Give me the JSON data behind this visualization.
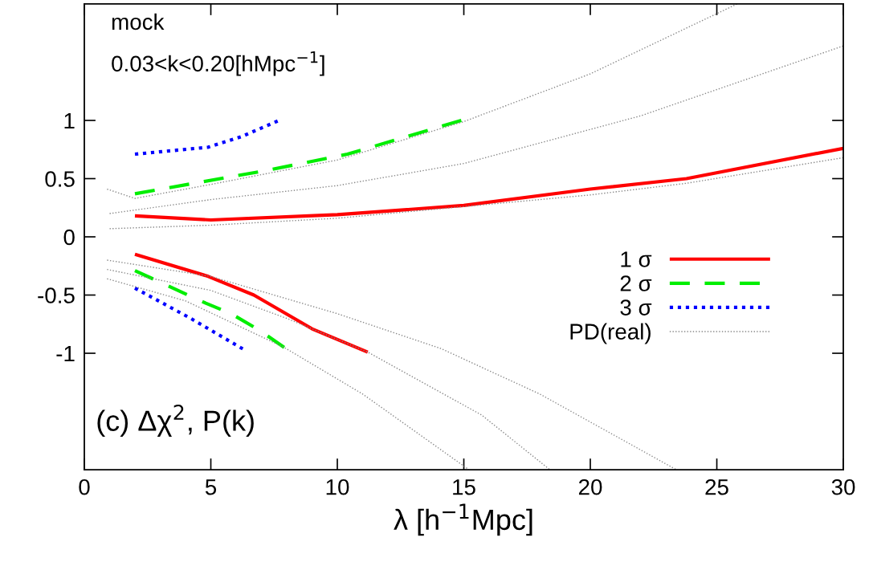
{
  "chart_data": {
    "type": "line",
    "xlabel": "λ [h$^{−1}$Mpc]",
    "annotations": [
      "mock",
      "0.03<k<0.20[hMpc$^{−1}$]",
      "(c) Δχ$^{2}$, P(k)"
    ],
    "xlim": [
      0,
      30
    ],
    "xticks": [
      0,
      5,
      10,
      15,
      20,
      25,
      30
    ],
    "ylim": [
      -2,
      2
    ],
    "yticks": [
      -1,
      -0.5,
      0,
      0.5,
      1
    ],
    "grid": false,
    "legend": "right",
    "marker": "none",
    "series": [
      {
        "name": "1 σ",
        "color": "#ff0000",
        "line_style": "solid",
        "x": [
          2,
          5,
          10,
          15,
          20,
          23.8,
          30
        ],
        "values": [
          0.18,
          0.145,
          0.19,
          0.27,
          0.41,
          0.5,
          0.76
        ]
      },
      {
        "name": "2 σ",
        "color": "#00ee00",
        "line_style": "dashed",
        "x": [
          2,
          7.2,
          10.4,
          14.9
        ],
        "values": [
          0.37,
          0.57,
          0.71,
          1.0
        ]
      },
      {
        "name": "3 σ",
        "color": "#0000ff",
        "line_style": "dotted",
        "x": [
          2,
          4.9,
          6.2,
          7.7
        ],
        "values": [
          0.71,
          0.77,
          0.86,
          1.0
        ]
      },
      {
        "name": "PD(real)",
        "color": "#888888",
        "line_style": "dotted",
        "x": [
          0.9,
          2,
          5,
          10,
          15,
          20,
          25.8
        ],
        "values": [
          0.41,
          0.33,
          0.45,
          0.66,
          0.99,
          1.4,
          2.0
        ]
      },
      {
        "color": "#ff0000",
        "line_style": "solid",
        "x": [
          2,
          4.9,
          6.7,
          9,
          11.2
        ],
        "values": [
          -0.15,
          -0.34,
          -0.5,
          -0.79,
          -0.99
        ]
      },
      {
        "color": "#00ee00",
        "line_style": "dashed",
        "x": [
          2,
          4.8,
          5.8,
          6.9,
          7.9
        ],
        "values": [
          -0.29,
          -0.57,
          -0.66,
          -0.8,
          -0.95
        ]
      },
      {
        "color": "#0000ff",
        "line_style": "dotted",
        "x": [
          2,
          4.2,
          6.4
        ],
        "values": [
          -0.44,
          -0.7,
          -0.98
        ]
      },
      {
        "color": "#888888",
        "line_style": "dotted",
        "x": [
          1,
          5,
          10,
          15,
          22,
          30
        ],
        "values": [
          0.2,
          0.32,
          0.44,
          0.63,
          1.04,
          1.64
        ]
      },
      {
        "color": "#888888",
        "line_style": "dotted",
        "x": [
          1,
          5,
          10,
          15,
          20,
          23.8,
          30
        ],
        "values": [
          0.07,
          0.1,
          0.16,
          0.26,
          0.36,
          0.46,
          0.68
        ]
      },
      {
        "color": "#888888",
        "line_style": "dotted",
        "x": [
          0.9,
          5,
          10,
          14.1,
          18,
          23.4
        ],
        "values": [
          -0.2,
          -0.34,
          -0.66,
          -0.96,
          -1.35,
          -2.0
        ]
      },
      {
        "color": "#888888",
        "line_style": "dotted",
        "x": [
          0.9,
          5,
          8,
          11.2,
          15.7,
          18.4
        ],
        "values": [
          -0.28,
          -0.46,
          -0.7,
          -0.99,
          -1.53,
          -2.0
        ]
      },
      {
        "color": "#888888",
        "line_style": "dotted",
        "x": [
          0.9,
          4,
          7.9,
          11,
          15.2
        ],
        "values": [
          -0.36,
          -0.55,
          -0.95,
          -1.35,
          -2.0
        ]
      }
    ]
  }
}
